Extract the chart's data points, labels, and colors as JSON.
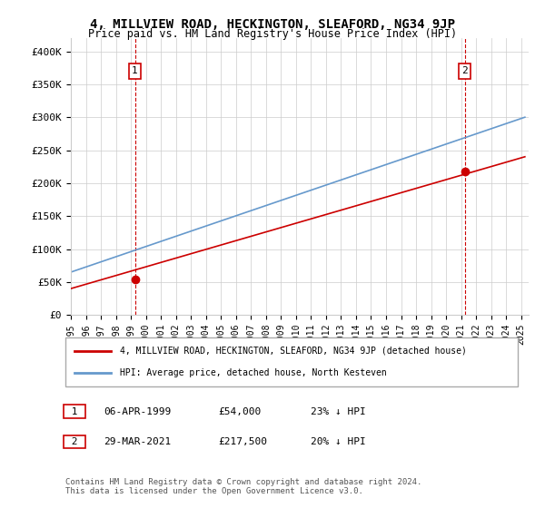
{
  "title": "4, MILLVIEW ROAD, HECKINGTON, SLEAFORD, NG34 9JP",
  "subtitle": "Price paid vs. HM Land Registry's House Price Index (HPI)",
  "legend_line1": "4, MILLVIEW ROAD, HECKINGTON, SLEAFORD, NG34 9JP (detached house)",
  "legend_line2": "HPI: Average price, detached house, North Kesteven",
  "annotation1_label": "1",
  "annotation1_date": "06-APR-1999",
  "annotation1_price": "£54,000",
  "annotation1_hpi": "23% ↓ HPI",
  "annotation1_year": 1999.27,
  "annotation1_value": 54000,
  "annotation2_label": "2",
  "annotation2_date": "29-MAR-2021",
  "annotation2_price": "£217,500",
  "annotation2_hpi": "20% ↓ HPI",
  "annotation2_year": 2021.24,
  "annotation2_value": 217500,
  "footnote": "Contains HM Land Registry data © Crown copyright and database right 2024.\nThis data is licensed under the Open Government Licence v3.0.",
  "hpi_color": "#6699cc",
  "price_color": "#cc0000",
  "vline_color": "#cc0000",
  "background_color": "#ffffff",
  "grid_color": "#cccccc",
  "ylim": [
    0,
    420000
  ],
  "yticks": [
    0,
    50000,
    100000,
    150000,
    200000,
    250000,
    300000,
    350000,
    400000
  ],
  "xlim_start": 1995.0,
  "xlim_end": 2025.5
}
